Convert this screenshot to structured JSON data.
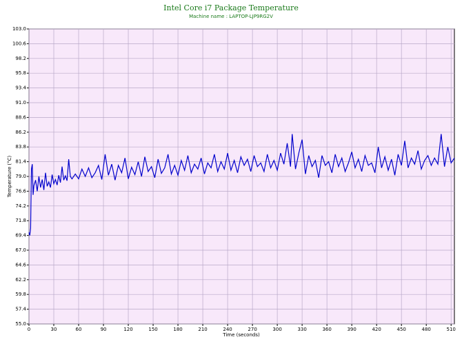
{
  "chart_data": {
    "type": "line",
    "title": "Intel Core i7 Package Temperature",
    "subtitle": "Machine name : LAPTOP-LJP9RG2V",
    "x_label": "Time (seconds)",
    "y_label": "Temperature (°C)",
    "xlim": [
      0,
      514
    ],
    "ylim": [
      55,
      103
    ],
    "xticks": [
      0,
      30,
      60,
      90,
      120,
      150,
      180,
      210,
      240,
      270,
      300,
      330,
      360,
      390,
      420,
      450,
      480,
      510
    ],
    "yticks": [
      {
        "value": 55,
        "label": "55.0"
      },
      57.4,
      59.8,
      62.2,
      64.6,
      {
        "value": 67,
        "label": "67.0"
      },
      69.4,
      71.8,
      74.2,
      76.6,
      {
        "value": 79,
        "label": "79.0"
      },
      81.4,
      83.8,
      86.2,
      88.6,
      {
        "value": 91,
        "label": "91.0"
      },
      93.4,
      95.8,
      98.2,
      100.6,
      {
        "value": 103,
        "label": "103.0"
      }
    ],
    "grid": true,
    "background": "#f8e8fa",
    "x": [
      0,
      1,
      2,
      3,
      4,
      5,
      6,
      8,
      10,
      12,
      14,
      16,
      18,
      20,
      22,
      24,
      26,
      28,
      30,
      32,
      34,
      36,
      38,
      40,
      42,
      44,
      46,
      48,
      50,
      52,
      56,
      60,
      64,
      68,
      72,
      76,
      80,
      84,
      88,
      92,
      96,
      100,
      104,
      108,
      112,
      116,
      120,
      124,
      128,
      132,
      136,
      140,
      144,
      148,
      152,
      156,
      160,
      164,
      168,
      172,
      176,
      180,
      184,
      188,
      192,
      196,
      200,
      204,
      208,
      212,
      216,
      220,
      224,
      228,
      232,
      236,
      240,
      244,
      248,
      252,
      256,
      260,
      264,
      268,
      272,
      276,
      280,
      284,
      288,
      292,
      296,
      300,
      304,
      308,
      312,
      316,
      318,
      322,
      326,
      330,
      334,
      338,
      342,
      346,
      350,
      354,
      358,
      362,
      366,
      370,
      374,
      378,
      382,
      386,
      390,
      394,
      398,
      402,
      406,
      410,
      414,
      418,
      422,
      426,
      430,
      434,
      438,
      442,
      446,
      450,
      454,
      458,
      462,
      466,
      470,
      474,
      478,
      482,
      486,
      490,
      494,
      498,
      502,
      506,
      510,
      514
    ],
    "series": [
      {
        "name": "Temperature",
        "color": "#0000cc",
        "values": [
          69.9,
          69.4,
          70.6,
          80.2,
          81.0,
          76.0,
          77.5,
          78.4,
          76.6,
          79.0,
          77.2,
          78.5,
          76.8,
          79.6,
          77.4,
          78.1,
          77.2,
          79.3,
          77.8,
          78.5,
          77.6,
          79.2,
          78.0,
          80.6,
          78.4,
          79.1,
          78.3,
          81.8,
          79.0,
          78.6,
          79.4,
          78.6,
          80.2,
          79.0,
          80.4,
          78.8,
          79.6,
          80.8,
          78.5,
          82.6,
          79.2,
          81.0,
          78.4,
          80.8,
          79.6,
          82.0,
          78.6,
          80.5,
          79.3,
          81.4,
          79.0,
          82.2,
          79.8,
          80.6,
          78.8,
          81.8,
          79.5,
          80.4,
          82.6,
          79.4,
          80.8,
          79.2,
          81.6,
          80.0,
          82.4,
          79.6,
          81.0,
          80.2,
          82.0,
          79.4,
          81.2,
          80.4,
          82.6,
          79.8,
          81.4,
          80.2,
          82.8,
          80.0,
          81.6,
          79.6,
          82.2,
          80.8,
          81.8,
          79.8,
          82.4,
          80.6,
          81.2,
          79.8,
          82.6,
          80.4,
          81.6,
          80.0,
          82.8,
          81.0,
          84.4,
          80.6,
          85.9,
          80.2,
          82.8,
          85.0,
          79.4,
          82.4,
          80.6,
          81.6,
          78.8,
          82.4,
          80.8,
          81.4,
          79.6,
          82.6,
          80.6,
          82.0,
          79.8,
          81.2,
          83.0,
          80.4,
          81.8,
          79.8,
          82.4,
          80.8,
          81.2,
          79.6,
          83.8,
          80.4,
          82.2,
          80.0,
          81.8,
          79.2,
          82.6,
          80.8,
          84.8,
          80.4,
          82.0,
          81.0,
          83.2,
          80.2,
          81.6,
          82.4,
          80.8,
          82.0,
          81.0,
          85.9,
          80.6,
          83.8,
          81.2,
          82.0
        ]
      }
    ]
  }
}
